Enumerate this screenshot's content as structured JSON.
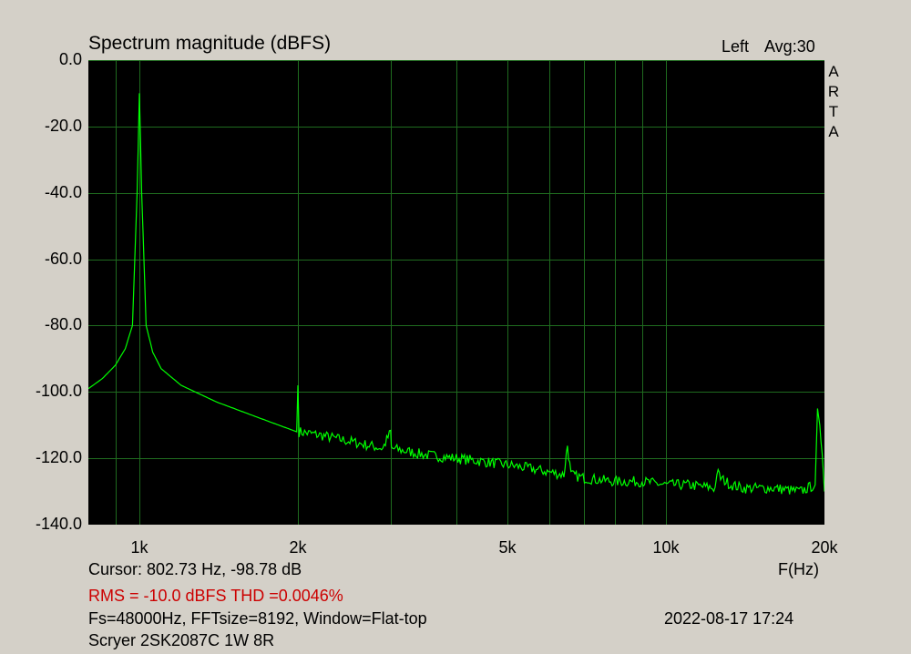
{
  "chart_data": {
    "type": "line",
    "title": "Spectrum magnitude (dBFS)",
    "xlabel": "F(Hz)",
    "ylabel": "",
    "xscale": "log",
    "xlim": [
      800,
      20000
    ],
    "ylim": [
      -140,
      0
    ],
    "grid": true,
    "y_ticks": [
      {
        "value": 0,
        "label": "0.0"
      },
      {
        "value": -20,
        "label": "-20.0"
      },
      {
        "value": -40,
        "label": "-40.0"
      },
      {
        "value": -60,
        "label": "-60.0"
      },
      {
        "value": -80,
        "label": "-80.0"
      },
      {
        "value": -100,
        "label": "-100.0"
      },
      {
        "value": -120,
        "label": "-120.0"
      },
      {
        "value": -140,
        "label": "-140.0"
      }
    ],
    "x_ticks": [
      {
        "value": 1000,
        "label": "1k"
      },
      {
        "value": 2000,
        "label": "2k"
      },
      {
        "value": 5000,
        "label": "5k"
      },
      {
        "value": 10000,
        "label": "10k"
      },
      {
        "value": 20000,
        "label": "20k"
      }
    ],
    "x_minor_grid": [
      900,
      3000,
      4000,
      6000,
      7000,
      8000,
      9000
    ],
    "series": [
      {
        "color": "#00ff00",
        "x": [
          800,
          850,
          900,
          940,
          970,
          990,
          1000,
          1010,
          1030,
          1060,
          1100,
          1200,
          1400,
          1700,
          1990,
          2000,
          2010,
          2200,
          2900,
          3000,
          3010,
          3500,
          4000,
          4500,
          5000,
          5500,
          6400,
          6500,
          6600,
          7000,
          8000,
          9000,
          10000,
          11000,
          12400,
          12500,
          12700,
          13000,
          13300,
          14000,
          16000,
          18000,
          19200,
          19400,
          19600,
          19800,
          20000
        ],
        "y": [
          -99,
          -96,
          -92,
          -87,
          -80,
          -40,
          -10,
          -40,
          -80,
          -88,
          -93,
          -98,
          -103,
          -108,
          -112,
          -98,
          -112,
          -113,
          -117,
          -112,
          -117,
          -119,
          -120,
          -121,
          -122,
          -123,
          -125,
          -116,
          -125,
          -126,
          -127,
          -127,
          -128,
          -128,
          -129,
          -124,
          -126,
          -127,
          -128,
          -129,
          -129,
          -130,
          -128,
          -105,
          -110,
          -120,
          -130
        ]
      }
    ]
  },
  "header": {
    "channel": "Left",
    "averaging": "Avg:30",
    "brand": [
      "A",
      "R",
      "T",
      "A"
    ]
  },
  "footer": {
    "cursor": "Cursor: 802.73 Hz, -98.78 dB",
    "rms_thd": "RMS =  -10.0 dBFS  THD =0.0046%",
    "settings": "Fs=48000Hz, FFTsize=8192, Window=Flat-top",
    "timestamp": "2022-08-17  17:24",
    "device": "Scryer 2SK2087C 1W 8R"
  },
  "colors": {
    "background": "#d4d0c8",
    "plot_background": "#000000",
    "grid": "#1f6b1f",
    "trace": "#00ff00",
    "rms_text": "#cc0000"
  }
}
